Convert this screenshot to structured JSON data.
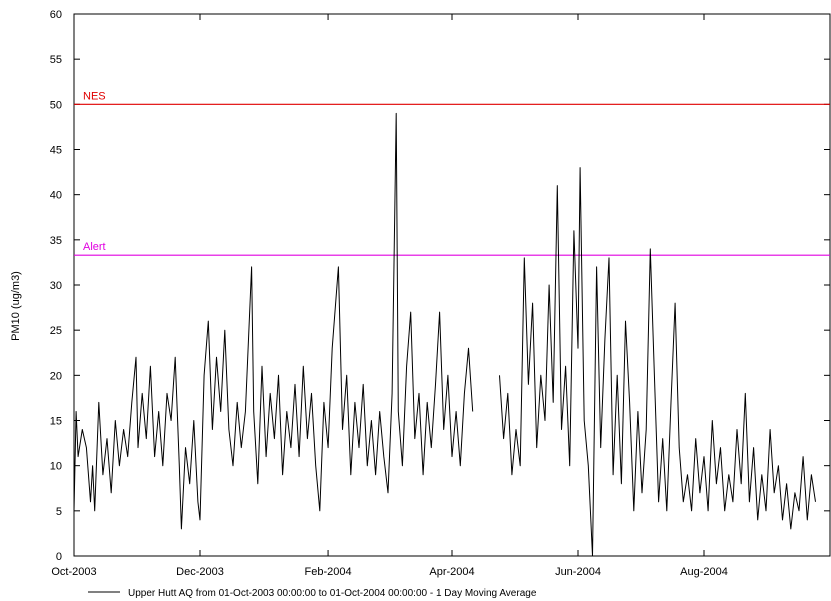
{
  "chart_data": {
    "type": "line",
    "title": "",
    "xlabel": "",
    "ylabel": "PM10 (ug/m3)",
    "ylim": [
      0,
      60
    ],
    "xlim": [
      "2003-10-01",
      "2004-10-01"
    ],
    "y_ticks": [
      "0",
      "5",
      "10",
      "15",
      "20",
      "25",
      "30",
      "35",
      "40",
      "45",
      "50",
      "55",
      "60"
    ],
    "x_ticks": [
      {
        "date": "2003-10-01",
        "label": "Oct-2003"
      },
      {
        "date": "2003-12-01",
        "label": "Dec-2003"
      },
      {
        "date": "2004-02-01",
        "label": "Feb-2004"
      },
      {
        "date": "2004-04-01",
        "label": "Apr-2004"
      },
      {
        "date": "2004-06-01",
        "label": "Jun-2004"
      },
      {
        "date": "2004-08-01",
        "label": "Aug-2004"
      }
    ],
    "grid": false,
    "legend_position": "bottom",
    "reference_lines": [
      {
        "name": "NES",
        "value": 50,
        "color": "#e00000"
      },
      {
        "name": "Alert",
        "value": 33.3,
        "color": "#e000e0"
      }
    ],
    "series": [
      {
        "name": "Upper Hutt AQ from 01-Oct-2003 00:00:00 to 01-Oct-2004 00:00:00 - 1 Day Moving Average",
        "color": "#000000",
        "segments": [
          [
            [
              "2003-10-01",
              5
            ],
            [
              "2003-10-02",
              16
            ],
            [
              "2003-10-03",
              11
            ],
            [
              "2003-10-05",
              14
            ],
            [
              "2003-10-07",
              12
            ],
            [
              "2003-10-09",
              6
            ],
            [
              "2003-10-10",
              10
            ],
            [
              "2003-10-11",
              5
            ],
            [
              "2003-10-13",
              17
            ],
            [
              "2003-10-15",
              9
            ],
            [
              "2003-10-17",
              13
            ],
            [
              "2003-10-19",
              7
            ],
            [
              "2003-10-21",
              15
            ],
            [
              "2003-10-23",
              10
            ],
            [
              "2003-10-25",
              14
            ],
            [
              "2003-10-27",
              11
            ],
            [
              "2003-10-29",
              17
            ],
            [
              "2003-10-31",
              22
            ],
            [
              "2003-11-01",
              12
            ],
            [
              "2003-11-03",
              18
            ],
            [
              "2003-11-05",
              13
            ],
            [
              "2003-11-07",
              21
            ],
            [
              "2003-11-09",
              11
            ],
            [
              "2003-11-11",
              16
            ],
            [
              "2003-11-13",
              10
            ],
            [
              "2003-11-15",
              18
            ],
            [
              "2003-11-17",
              15
            ],
            [
              "2003-11-19",
              22
            ],
            [
              "2003-11-21",
              10
            ],
            [
              "2003-11-22",
              3
            ],
            [
              "2003-11-24",
              12
            ],
            [
              "2003-11-26",
              8
            ],
            [
              "2003-11-28",
              15
            ],
            [
              "2003-11-30",
              6
            ],
            [
              "2003-12-01",
              4
            ],
            [
              "2003-12-03",
              20
            ],
            [
              "2003-12-05",
              26
            ],
            [
              "2003-12-07",
              14
            ],
            [
              "2003-12-09",
              22
            ],
            [
              "2003-12-11",
              16
            ],
            [
              "2003-12-13",
              25
            ],
            [
              "2003-12-15",
              14
            ],
            [
              "2003-12-17",
              10
            ],
            [
              "2003-12-19",
              17
            ],
            [
              "2003-12-21",
              12
            ],
            [
              "2003-12-23",
              16
            ],
            [
              "2003-12-26",
              32
            ],
            [
              "2003-12-27",
              16
            ],
            [
              "2003-12-29",
              8
            ],
            [
              "2003-12-31",
              21
            ],
            [
              "2004-01-02",
              11
            ],
            [
              "2004-01-04",
              18
            ],
            [
              "2004-01-06",
              13
            ],
            [
              "2004-01-08",
              20
            ],
            [
              "2004-01-10",
              9
            ],
            [
              "2004-01-12",
              16
            ],
            [
              "2004-01-14",
              12
            ],
            [
              "2004-01-16",
              19
            ],
            [
              "2004-01-18",
              11
            ],
            [
              "2004-01-20",
              21
            ],
            [
              "2004-01-22",
              13
            ],
            [
              "2004-01-24",
              18
            ],
            [
              "2004-01-26",
              10
            ],
            [
              "2004-01-28",
              5
            ],
            [
              "2004-01-30",
              17
            ],
            [
              "2004-02-01",
              12
            ],
            [
              "2004-02-03",
              23
            ],
            [
              "2004-02-06",
              32
            ],
            [
              "2004-02-08",
              14
            ],
            [
              "2004-02-10",
              20
            ],
            [
              "2004-02-12",
              9
            ],
            [
              "2004-02-14",
              17
            ],
            [
              "2004-02-16",
              12
            ],
            [
              "2004-02-18",
              19
            ],
            [
              "2004-02-20",
              10
            ],
            [
              "2004-02-22",
              15
            ],
            [
              "2004-02-24",
              9
            ],
            [
              "2004-02-26",
              16
            ],
            [
              "2004-02-28",
              11
            ],
            [
              "2004-03-01",
              7
            ],
            [
              "2004-03-03",
              18
            ],
            [
              "2004-03-05",
              49
            ],
            [
              "2004-03-06",
              16
            ],
            [
              "2004-03-08",
              10
            ],
            [
              "2004-03-10",
              21
            ],
            [
              "2004-03-12",
              27
            ],
            [
              "2004-03-14",
              13
            ],
            [
              "2004-03-16",
              18
            ],
            [
              "2004-03-18",
              9
            ],
            [
              "2004-03-20",
              17
            ],
            [
              "2004-03-22",
              12
            ],
            [
              "2004-03-24",
              19
            ],
            [
              "2004-03-26",
              27
            ],
            [
              "2004-03-28",
              14
            ],
            [
              "2004-03-30",
              20
            ],
            [
              "2004-04-01",
              11
            ],
            [
              "2004-04-03",
              16
            ],
            [
              "2004-04-05",
              10
            ],
            [
              "2004-04-07",
              18
            ],
            [
              "2004-04-09",
              23
            ],
            [
              "2004-04-11",
              16
            ]
          ],
          [
            [
              "2004-04-24",
              20
            ],
            [
              "2004-04-26",
              13
            ],
            [
              "2004-04-28",
              18
            ],
            [
              "2004-04-30",
              9
            ],
            [
              "2004-05-02",
              14
            ],
            [
              "2004-05-04",
              10
            ],
            [
              "2004-05-06",
              33
            ],
            [
              "2004-05-08",
              19
            ],
            [
              "2004-05-10",
              28
            ],
            [
              "2004-05-12",
              12
            ],
            [
              "2004-05-14",
              20
            ],
            [
              "2004-05-16",
              15
            ],
            [
              "2004-05-18",
              30
            ],
            [
              "2004-05-20",
              17
            ],
            [
              "2004-05-22",
              41
            ],
            [
              "2004-05-24",
              14
            ],
            [
              "2004-05-26",
              21
            ],
            [
              "2004-05-28",
              10
            ],
            [
              "2004-05-30",
              36
            ],
            [
              "2004-06-01",
              23
            ],
            [
              "2004-06-02",
              43
            ],
            [
              "2004-06-04",
              15
            ],
            [
              "2004-06-06",
              10
            ],
            [
              "2004-06-08",
              0
            ],
            [
              "2004-06-10",
              32
            ],
            [
              "2004-06-12",
              12
            ],
            [
              "2004-06-14",
              24
            ],
            [
              "2004-06-16",
              33
            ],
            [
              "2004-06-18",
              9
            ],
            [
              "2004-06-20",
              20
            ],
            [
              "2004-06-22",
              8
            ],
            [
              "2004-06-24",
              26
            ],
            [
              "2004-06-26",
              17
            ],
            [
              "2004-06-28",
              5
            ],
            [
              "2004-06-30",
              16
            ],
            [
              "2004-07-02",
              7
            ],
            [
              "2004-07-04",
              14
            ],
            [
              "2004-07-06",
              34
            ],
            [
              "2004-07-08",
              20
            ],
            [
              "2004-07-10",
              6
            ],
            [
              "2004-07-12",
              13
            ],
            [
              "2004-07-14",
              5
            ],
            [
              "2004-07-16",
              17
            ],
            [
              "2004-07-18",
              28
            ],
            [
              "2004-07-20",
              12
            ],
            [
              "2004-07-22",
              6
            ],
            [
              "2004-07-24",
              9
            ],
            [
              "2004-07-26",
              5
            ],
            [
              "2004-07-28",
              13
            ],
            [
              "2004-07-30",
              7
            ],
            [
              "2004-08-01",
              11
            ],
            [
              "2004-08-03",
              5
            ],
            [
              "2004-08-05",
              15
            ],
            [
              "2004-08-07",
              8
            ],
            [
              "2004-08-09",
              12
            ],
            [
              "2004-08-11",
              5
            ],
            [
              "2004-08-13",
              9
            ],
            [
              "2004-08-15",
              6
            ],
            [
              "2004-08-17",
              14
            ],
            [
              "2004-08-19",
              8
            ],
            [
              "2004-08-21",
              18
            ],
            [
              "2004-08-23",
              6
            ],
            [
              "2004-08-25",
              12
            ],
            [
              "2004-08-27",
              4
            ],
            [
              "2004-08-29",
              9
            ],
            [
              "2004-08-31",
              5
            ],
            [
              "2004-09-02",
              14
            ],
            [
              "2004-09-04",
              7
            ],
            [
              "2004-09-06",
              10
            ],
            [
              "2004-09-08",
              4
            ],
            [
              "2004-09-10",
              8
            ],
            [
              "2004-09-12",
              3
            ],
            [
              "2004-09-14",
              7
            ],
            [
              "2004-09-16",
              5
            ],
            [
              "2004-09-18",
              11
            ],
            [
              "2004-09-20",
              4
            ],
            [
              "2004-09-22",
              9
            ],
            [
              "2004-09-24",
              6
            ]
          ]
        ]
      }
    ]
  }
}
